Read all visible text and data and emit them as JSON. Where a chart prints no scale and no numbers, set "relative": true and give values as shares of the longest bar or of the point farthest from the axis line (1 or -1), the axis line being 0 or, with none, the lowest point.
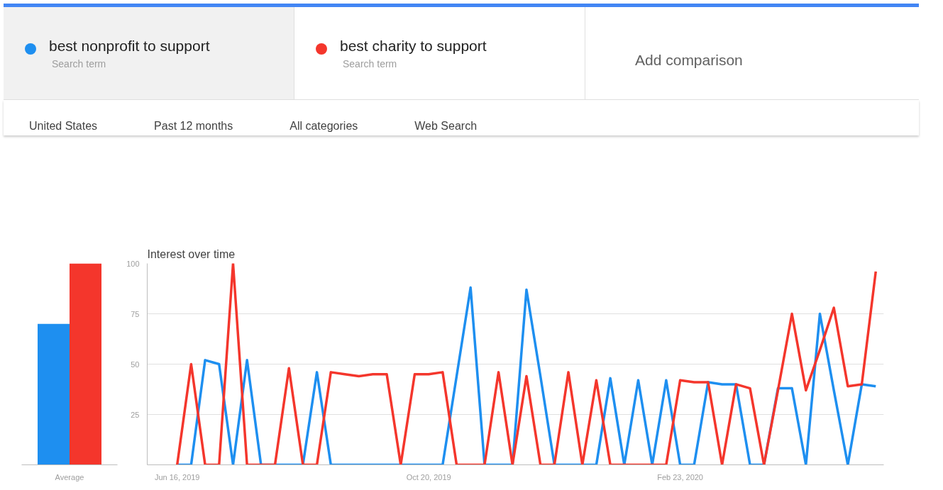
{
  "chart_data": [
    {
      "type": "bar",
      "relative": true,
      "categories": [
        "Average"
      ],
      "series": [
        {
          "color": "#1e8ff0",
          "values": [
            0.7
          ]
        },
        {
          "color": "#f4362c",
          "values": [
            1
          ]
        }
      ]
    },
    {
      "type": "line",
      "title": "Interest over time",
      "legend": "top",
      "grid": "y",
      "marker": "none",
      "line_style": "solid",
      "annotations": [
        "Search term",
        "Search term",
        "Add comparison",
        "United States",
        "Past 12 months",
        "All categories",
        "Web Search"
      ],
      "x": [
        "2019-06-16",
        "2019-06-23",
        "2019-06-30",
        "2019-07-07",
        "2019-07-14",
        "2019-07-21",
        "2019-07-28",
        "2019-08-04",
        "2019-08-11",
        "2019-08-18",
        "2019-08-25",
        "2019-09-01",
        "2019-09-08",
        "2019-09-15",
        "2019-09-22",
        "2019-09-29",
        "2019-10-06",
        "2019-10-13",
        "2019-10-20",
        "2019-10-27",
        "2019-11-03",
        "2019-11-10",
        "2019-11-17",
        "2019-11-24",
        "2019-12-01",
        "2019-12-08",
        "2019-12-15",
        "2019-12-22",
        "2019-12-29",
        "2020-01-05",
        "2020-01-12",
        "2020-01-19",
        "2020-01-26",
        "2020-02-02",
        "2020-02-09",
        "2020-02-16",
        "2020-02-23",
        "2020-03-01",
        "2020-03-08",
        "2020-03-15",
        "2020-03-22",
        "2020-03-29",
        "2020-04-05",
        "2020-04-12",
        "2020-04-19",
        "2020-04-26",
        "2020-05-03",
        "2020-05-10",
        "2020-05-17",
        "2020-05-24",
        "2020-05-31"
      ],
      "xlim": [
        "2019-06-01",
        "2020-06-04"
      ],
      "xticks": [
        {
          "value": "2019-06-16",
          "label": "Jun 16, 2019"
        },
        {
          "value": "2019-10-20",
          "label": "Oct 20, 2019"
        },
        {
          "value": "2020-02-23",
          "label": "Feb 23, 2020"
        }
      ],
      "ylim": [
        0,
        100
      ],
      "yticks": [
        {
          "value": 0,
          "label": null
        },
        25,
        50,
        75,
        100
      ],
      "series": [
        {
          "name": "best nonprofit to support",
          "color": "#1e8ff0",
          "values": [
            0,
            0,
            52,
            50,
            0,
            52,
            0,
            0,
            0,
            0,
            46,
            0,
            0,
            0,
            0,
            0,
            0,
            0,
            0,
            0,
            44,
            88,
            0,
            0,
            0,
            87,
            44,
            0,
            0,
            0,
            0,
            43,
            0,
            42,
            0,
            42,
            0,
            0,
            41,
            40,
            40,
            0,
            0,
            38,
            38,
            0,
            75,
            37,
            0,
            40,
            39
          ]
        },
        {
          "name": "best charity to support",
          "color": "#f4362c",
          "values": [
            0,
            50,
            0,
            0,
            100,
            0,
            0,
            0,
            48,
            0,
            0,
            46,
            45,
            44,
            45,
            45,
            0,
            45,
            45,
            46,
            0,
            0,
            0,
            46,
            0,
            44,
            0,
            0,
            46,
            0,
            42,
            0,
            0,
            0,
            0,
            0,
            42,
            41,
            41,
            0,
            40,
            38,
            0,
            37,
            75,
            37,
            57,
            78,
            39,
            40,
            96
          ]
        }
      ]
    }
  ]
}
